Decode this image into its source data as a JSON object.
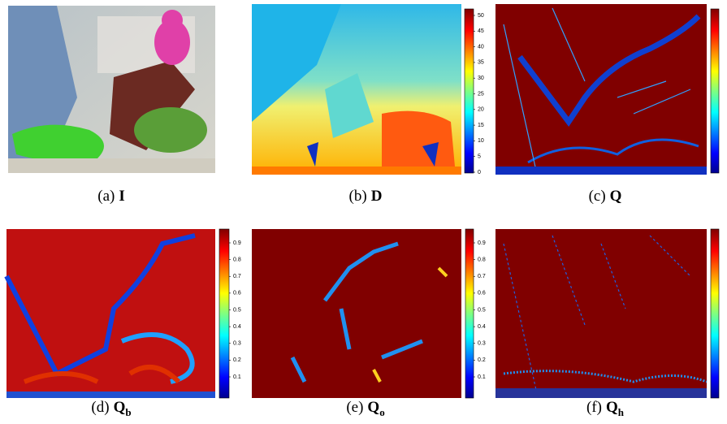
{
  "figure": {
    "panels": [
      {
        "label": "(a)",
        "symbol": "I"
      },
      {
        "label": "(b)",
        "symbol": "D",
        "colorbar_ticks": [
          0,
          5,
          10,
          15,
          20,
          25,
          30,
          35,
          40,
          45,
          50
        ]
      },
      {
        "label": "(c)",
        "symbol": "Q"
      },
      {
        "label": "(d)",
        "symbol": "Q",
        "subscript": "b",
        "colorbar_ticks": [
          0.1,
          0.2,
          0.3,
          0.4,
          0.5,
          0.6,
          0.7,
          0.8,
          0.9
        ]
      },
      {
        "label": "(e)",
        "symbol": "Q",
        "subscript": "o",
        "colorbar_ticks": [
          0.1,
          0.2,
          0.3,
          0.4,
          0.5,
          0.6,
          0.7,
          0.8,
          0.9
        ]
      },
      {
        "label": "(f)",
        "symbol": "Q",
        "subscript": "h"
      }
    ]
  }
}
